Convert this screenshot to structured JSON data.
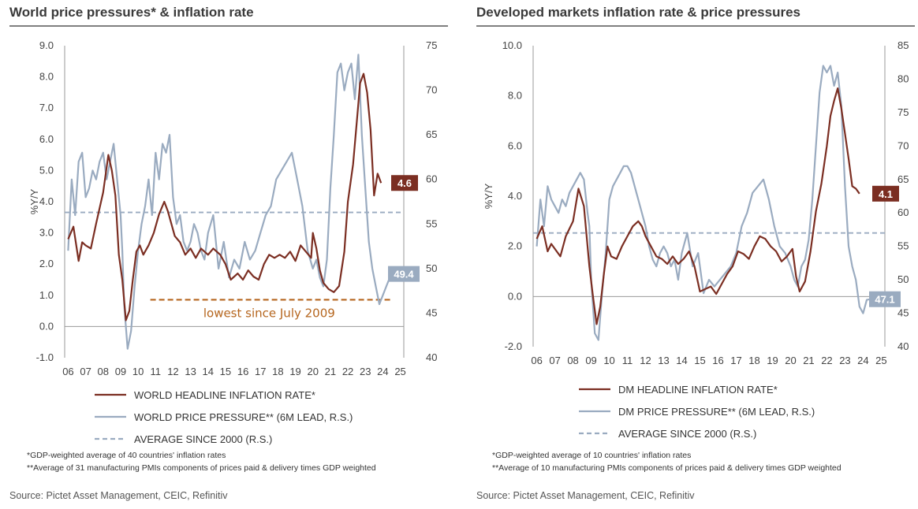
{
  "chart_data": [
    {
      "type": "line",
      "title": "World price pressures* & inflation rate",
      "ylabel": "%Y/Y",
      "ylim": [
        -1.0,
        9.0
      ],
      "y2lim": [
        40,
        75
      ],
      "xlim": [
        2005.8,
        2025.2
      ],
      "y_ticks": [
        "9.0",
        "8.0",
        "7.0",
        "6.0",
        "5.0",
        "4.0",
        "3.0",
        "2.0",
        "1.0",
        "0.0",
        "-1.0"
      ],
      "y2_ticks": [
        "75",
        "70",
        "65",
        "60",
        "55",
        "50",
        "45",
        "40"
      ],
      "x_ticks": [
        "06",
        "07",
        "08",
        "09",
        "10",
        "11",
        "12",
        "13",
        "14",
        "15",
        "16",
        "17",
        "18",
        "19",
        "20",
        "21",
        "22",
        "23",
        "24",
        "25"
      ],
      "series": [
        {
          "name": "WORLD HEADLINE INFLATION RATE*",
          "axis": "left",
          "color": "#7b2e22",
          "x": [
            2006.0,
            2006.3,
            2006.6,
            2006.8,
            2007.0,
            2007.3,
            2007.6,
            2008.0,
            2008.3,
            2008.5,
            2008.7,
            2008.9,
            2009.1,
            2009.3,
            2009.5,
            2009.7,
            2009.9,
            2010.1,
            2010.3,
            2010.6,
            2010.9,
            2011.2,
            2011.5,
            2011.7,
            2011.9,
            2012.1,
            2012.4,
            2012.7,
            2013.0,
            2013.3,
            2013.6,
            2014.0,
            2014.3,
            2014.7,
            2015.0,
            2015.3,
            2015.7,
            2016.0,
            2016.3,
            2016.6,
            2016.9,
            2017.2,
            2017.5,
            2017.8,
            2018.1,
            2018.4,
            2018.7,
            2019.0,
            2019.3,
            2019.6,
            2019.9,
            2020.0,
            2020.2,
            2020.4,
            2020.6,
            2020.9,
            2021.2,
            2021.5,
            2021.8,
            2022.0,
            2022.3,
            2022.5,
            2022.7,
            2022.9,
            2023.1,
            2023.3,
            2023.5,
            2023.7,
            2023.9
          ],
          "values": [
            2.8,
            3.2,
            2.1,
            2.7,
            2.6,
            2.5,
            3.3,
            4.3,
            5.5,
            5.0,
            4.2,
            2.3,
            1.5,
            0.2,
            0.5,
            1.5,
            2.4,
            2.6,
            2.3,
            2.6,
            3.0,
            3.6,
            4.0,
            3.7,
            3.3,
            2.9,
            2.7,
            2.3,
            2.5,
            2.2,
            2.5,
            2.3,
            2.5,
            2.3,
            2.0,
            1.5,
            1.7,
            1.5,
            1.8,
            1.6,
            1.5,
            2.0,
            2.3,
            2.2,
            2.3,
            2.2,
            2.4,
            2.1,
            2.6,
            2.4,
            2.2,
            3.0,
            2.5,
            1.8,
            1.4,
            1.2,
            1.1,
            1.3,
            2.4,
            4.0,
            5.2,
            6.5,
            7.8,
            8.1,
            7.5,
            6.3,
            4.2,
            4.9,
            4.6
          ]
        },
        {
          "name": "WORLD PRICE PRESSURE** (6M LEAD, R.S.)",
          "axis": "right",
          "color": "#9aabc0",
          "x": [
            2006.0,
            2006.2,
            2006.4,
            2006.6,
            2006.8,
            2007.0,
            2007.2,
            2007.4,
            2007.6,
            2007.8,
            2008.0,
            2008.2,
            2008.4,
            2008.6,
            2008.8,
            2008.9,
            2009.0,
            2009.1,
            2009.2,
            2009.4,
            2009.6,
            2009.8,
            2010.0,
            2010.2,
            2010.4,
            2010.6,
            2010.8,
            2011.0,
            2011.2,
            2011.4,
            2011.6,
            2011.8,
            2012.0,
            2012.2,
            2012.4,
            2012.6,
            2012.8,
            2013.0,
            2013.2,
            2013.4,
            2013.6,
            2013.8,
            2014.0,
            2014.3,
            2014.6,
            2014.9,
            2015.2,
            2015.5,
            2015.8,
            2016.1,
            2016.4,
            2016.7,
            2017.0,
            2017.3,
            2017.6,
            2017.9,
            2018.2,
            2018.5,
            2018.8,
            2019.1,
            2019.4,
            2019.7,
            2020.0,
            2020.2,
            2020.4,
            2020.6,
            2020.8,
            2021.0,
            2021.2,
            2021.4,
            2021.6,
            2021.8,
            2022.0,
            2022.2,
            2022.4,
            2022.6,
            2022.8,
            2023.0,
            2023.2,
            2023.4,
            2023.6,
            2023.8,
            2024.0,
            2024.2,
            2024.4,
            2024.6
          ],
          "values": [
            52,
            60,
            56,
            62,
            63,
            58,
            59,
            61,
            60,
            62,
            63,
            60,
            62,
            64,
            60,
            58,
            56,
            52,
            46,
            41,
            43,
            48,
            52,
            55,
            57,
            60,
            56,
            63,
            60,
            64,
            63,
            65,
            58,
            55,
            56,
            53,
            52,
            53,
            55,
            54,
            52,
            51,
            54,
            56,
            50,
            53,
            49,
            51,
            50,
            53,
            51,
            52,
            54,
            56,
            57,
            60,
            61,
            62,
            63,
            60,
            57,
            52,
            50,
            51,
            49,
            48,
            51,
            59,
            65,
            72,
            73,
            70,
            72,
            73,
            69,
            74,
            65,
            59,
            53,
            50,
            48,
            46,
            47,
            48,
            49,
            49.4
          ]
        },
        {
          "name": "AVERAGE SINCE 2000 (R.S.)",
          "axis": "right",
          "color": "#9aabc0",
          "dashed": true,
          "value": 56.3
        }
      ],
      "annotation": "lowest since July 2009",
      "annotation_level": 46.5,
      "callouts": [
        {
          "text": "4.6",
          "color": "#7b2e22"
        },
        {
          "text": "49.4",
          "color": "#9aabc0"
        }
      ],
      "footnotes": [
        "*GDP-weighted average of 40 countries' inflation rates",
        "**Average of 31 manufacturing PMIs components of prices paid & delivery times GDP weighted"
      ],
      "source": "Source: Pictet Asset Management, CEIC, Refinitiv"
    },
    {
      "type": "line",
      "title": "Developed markets inflation rate & price pressures",
      "ylabel": "%Y/Y",
      "ylim": [
        -2.0,
        10.0
      ],
      "y2lim": [
        40,
        85
      ],
      "xlim": [
        2005.8,
        2025.2
      ],
      "y_ticks": [
        "10.0",
        "8.0",
        "6.0",
        "4.0",
        "2.0",
        "0.0",
        "-2.0"
      ],
      "y2_ticks": [
        "85",
        "80",
        "75",
        "70",
        "65",
        "60",
        "55",
        "50",
        "45",
        "40"
      ],
      "x_ticks": [
        "06",
        "07",
        "08",
        "09",
        "10",
        "11",
        "12",
        "13",
        "14",
        "15",
        "16",
        "17",
        "18",
        "19",
        "20",
        "21",
        "22",
        "23",
        "24",
        "25"
      ],
      "series": [
        {
          "name": "DM HEADLINE INFLATION RATE*",
          "axis": "left",
          "color": "#7b2e22",
          "x": [
            2006.0,
            2006.3,
            2006.6,
            2006.8,
            2007.0,
            2007.3,
            2007.6,
            2008.0,
            2008.3,
            2008.6,
            2008.9,
            2009.1,
            2009.3,
            2009.5,
            2009.7,
            2009.9,
            2010.1,
            2010.4,
            2010.7,
            2011.0,
            2011.3,
            2011.6,
            2011.8,
            2012.0,
            2012.3,
            2012.6,
            2012.9,
            2013.2,
            2013.5,
            2013.8,
            2014.1,
            2014.4,
            2014.7,
            2015.0,
            2015.3,
            2015.6,
            2015.9,
            2016.2,
            2016.5,
            2016.8,
            2017.1,
            2017.4,
            2017.7,
            2018.0,
            2018.3,
            2018.6,
            2018.9,
            2019.2,
            2019.5,
            2019.8,
            2020.1,
            2020.3,
            2020.5,
            2020.8,
            2021.1,
            2021.4,
            2021.7,
            2022.0,
            2022.2,
            2022.4,
            2022.6,
            2022.8,
            2023.0,
            2023.2,
            2023.4,
            2023.6,
            2023.8
          ],
          "values": [
            2.3,
            2.8,
            1.8,
            2.1,
            1.9,
            1.6,
            2.4,
            3.0,
            4.3,
            3.6,
            1.2,
            0.0,
            -1.1,
            -0.4,
            0.9,
            2.0,
            1.6,
            1.5,
            2.0,
            2.4,
            2.8,
            3.0,
            2.8,
            2.4,
            2.0,
            1.6,
            1.5,
            1.3,
            1.6,
            1.3,
            1.5,
            1.8,
            1.2,
            0.2,
            0.3,
            0.4,
            0.1,
            0.5,
            0.9,
            1.2,
            1.8,
            1.7,
            1.5,
            2.0,
            2.4,
            2.3,
            2.0,
            1.8,
            1.4,
            1.6,
            1.9,
            0.8,
            0.2,
            0.6,
            1.8,
            3.4,
            4.5,
            6.0,
            7.2,
            7.8,
            8.3,
            7.5,
            6.5,
            5.5,
            4.4,
            4.3,
            4.1
          ]
        },
        {
          "name": "DM PRICE PRESSURE** (6M LEAD, R.S.)",
          "axis": "right",
          "color": "#9aabc0",
          "x": [
            2006.0,
            2006.2,
            2006.4,
            2006.6,
            2006.8,
            2007.0,
            2007.2,
            2007.4,
            2007.6,
            2007.8,
            2008.0,
            2008.2,
            2008.4,
            2008.6,
            2008.8,
            2008.9,
            2009.0,
            2009.2,
            2009.4,
            2009.6,
            2009.8,
            2010.0,
            2010.2,
            2010.4,
            2010.6,
            2010.8,
            2011.0,
            2011.2,
            2011.4,
            2011.6,
            2011.8,
            2012.0,
            2012.2,
            2012.4,
            2012.6,
            2012.8,
            2013.0,
            2013.2,
            2013.4,
            2013.6,
            2013.8,
            2014.0,
            2014.3,
            2014.6,
            2014.9,
            2015.2,
            2015.5,
            2015.8,
            2016.1,
            2016.4,
            2016.7,
            2017.0,
            2017.3,
            2017.6,
            2017.9,
            2018.2,
            2018.5,
            2018.8,
            2019.1,
            2019.4,
            2019.7,
            2020.0,
            2020.2,
            2020.4,
            2020.6,
            2020.8,
            2021.0,
            2021.2,
            2021.4,
            2021.6,
            2021.8,
            2022.0,
            2022.2,
            2022.4,
            2022.6,
            2022.8,
            2023.0,
            2023.2,
            2023.4,
            2023.6,
            2023.8,
            2024.0,
            2024.2,
            2024.4
          ],
          "values": [
            55,
            62,
            58,
            64,
            62,
            61,
            60,
            62,
            61,
            63,
            64,
            65,
            66,
            65,
            60,
            58,
            50,
            42,
            41,
            48,
            54,
            62,
            64,
            65,
            66,
            67,
            67,
            66,
            64,
            62,
            60,
            58,
            55,
            53,
            52,
            54,
            55,
            54,
            52,
            53,
            50,
            54,
            57,
            52,
            54,
            48,
            50,
            49,
            50,
            51,
            52,
            54,
            58,
            60,
            63,
            64,
            65,
            62,
            58,
            55,
            54,
            52,
            50,
            49,
            52,
            53,
            56,
            62,
            70,
            78,
            82,
            81,
            82,
            79,
            81,
            76,
            64,
            55,
            52,
            50,
            46,
            45,
            47,
            47.1
          ]
        },
        {
          "name": "AVERAGE SINCE 2000 (R.S.)",
          "axis": "right",
          "color": "#9aabc0",
          "dashed": true,
          "value": 57
        }
      ],
      "callouts": [
        {
          "text": "4.1",
          "color": "#7b2e22"
        },
        {
          "text": "47.1",
          "color": "#9aabc0"
        }
      ],
      "footnotes": [
        "*GDP-weighted average of 10 countries' inflation rates",
        "**Average of 10 manufacturing PMIs components of prices paid & delivery times GDP weighted"
      ],
      "source": "Source: Pictet Asset Management, CEIC, Refinitiv"
    }
  ]
}
